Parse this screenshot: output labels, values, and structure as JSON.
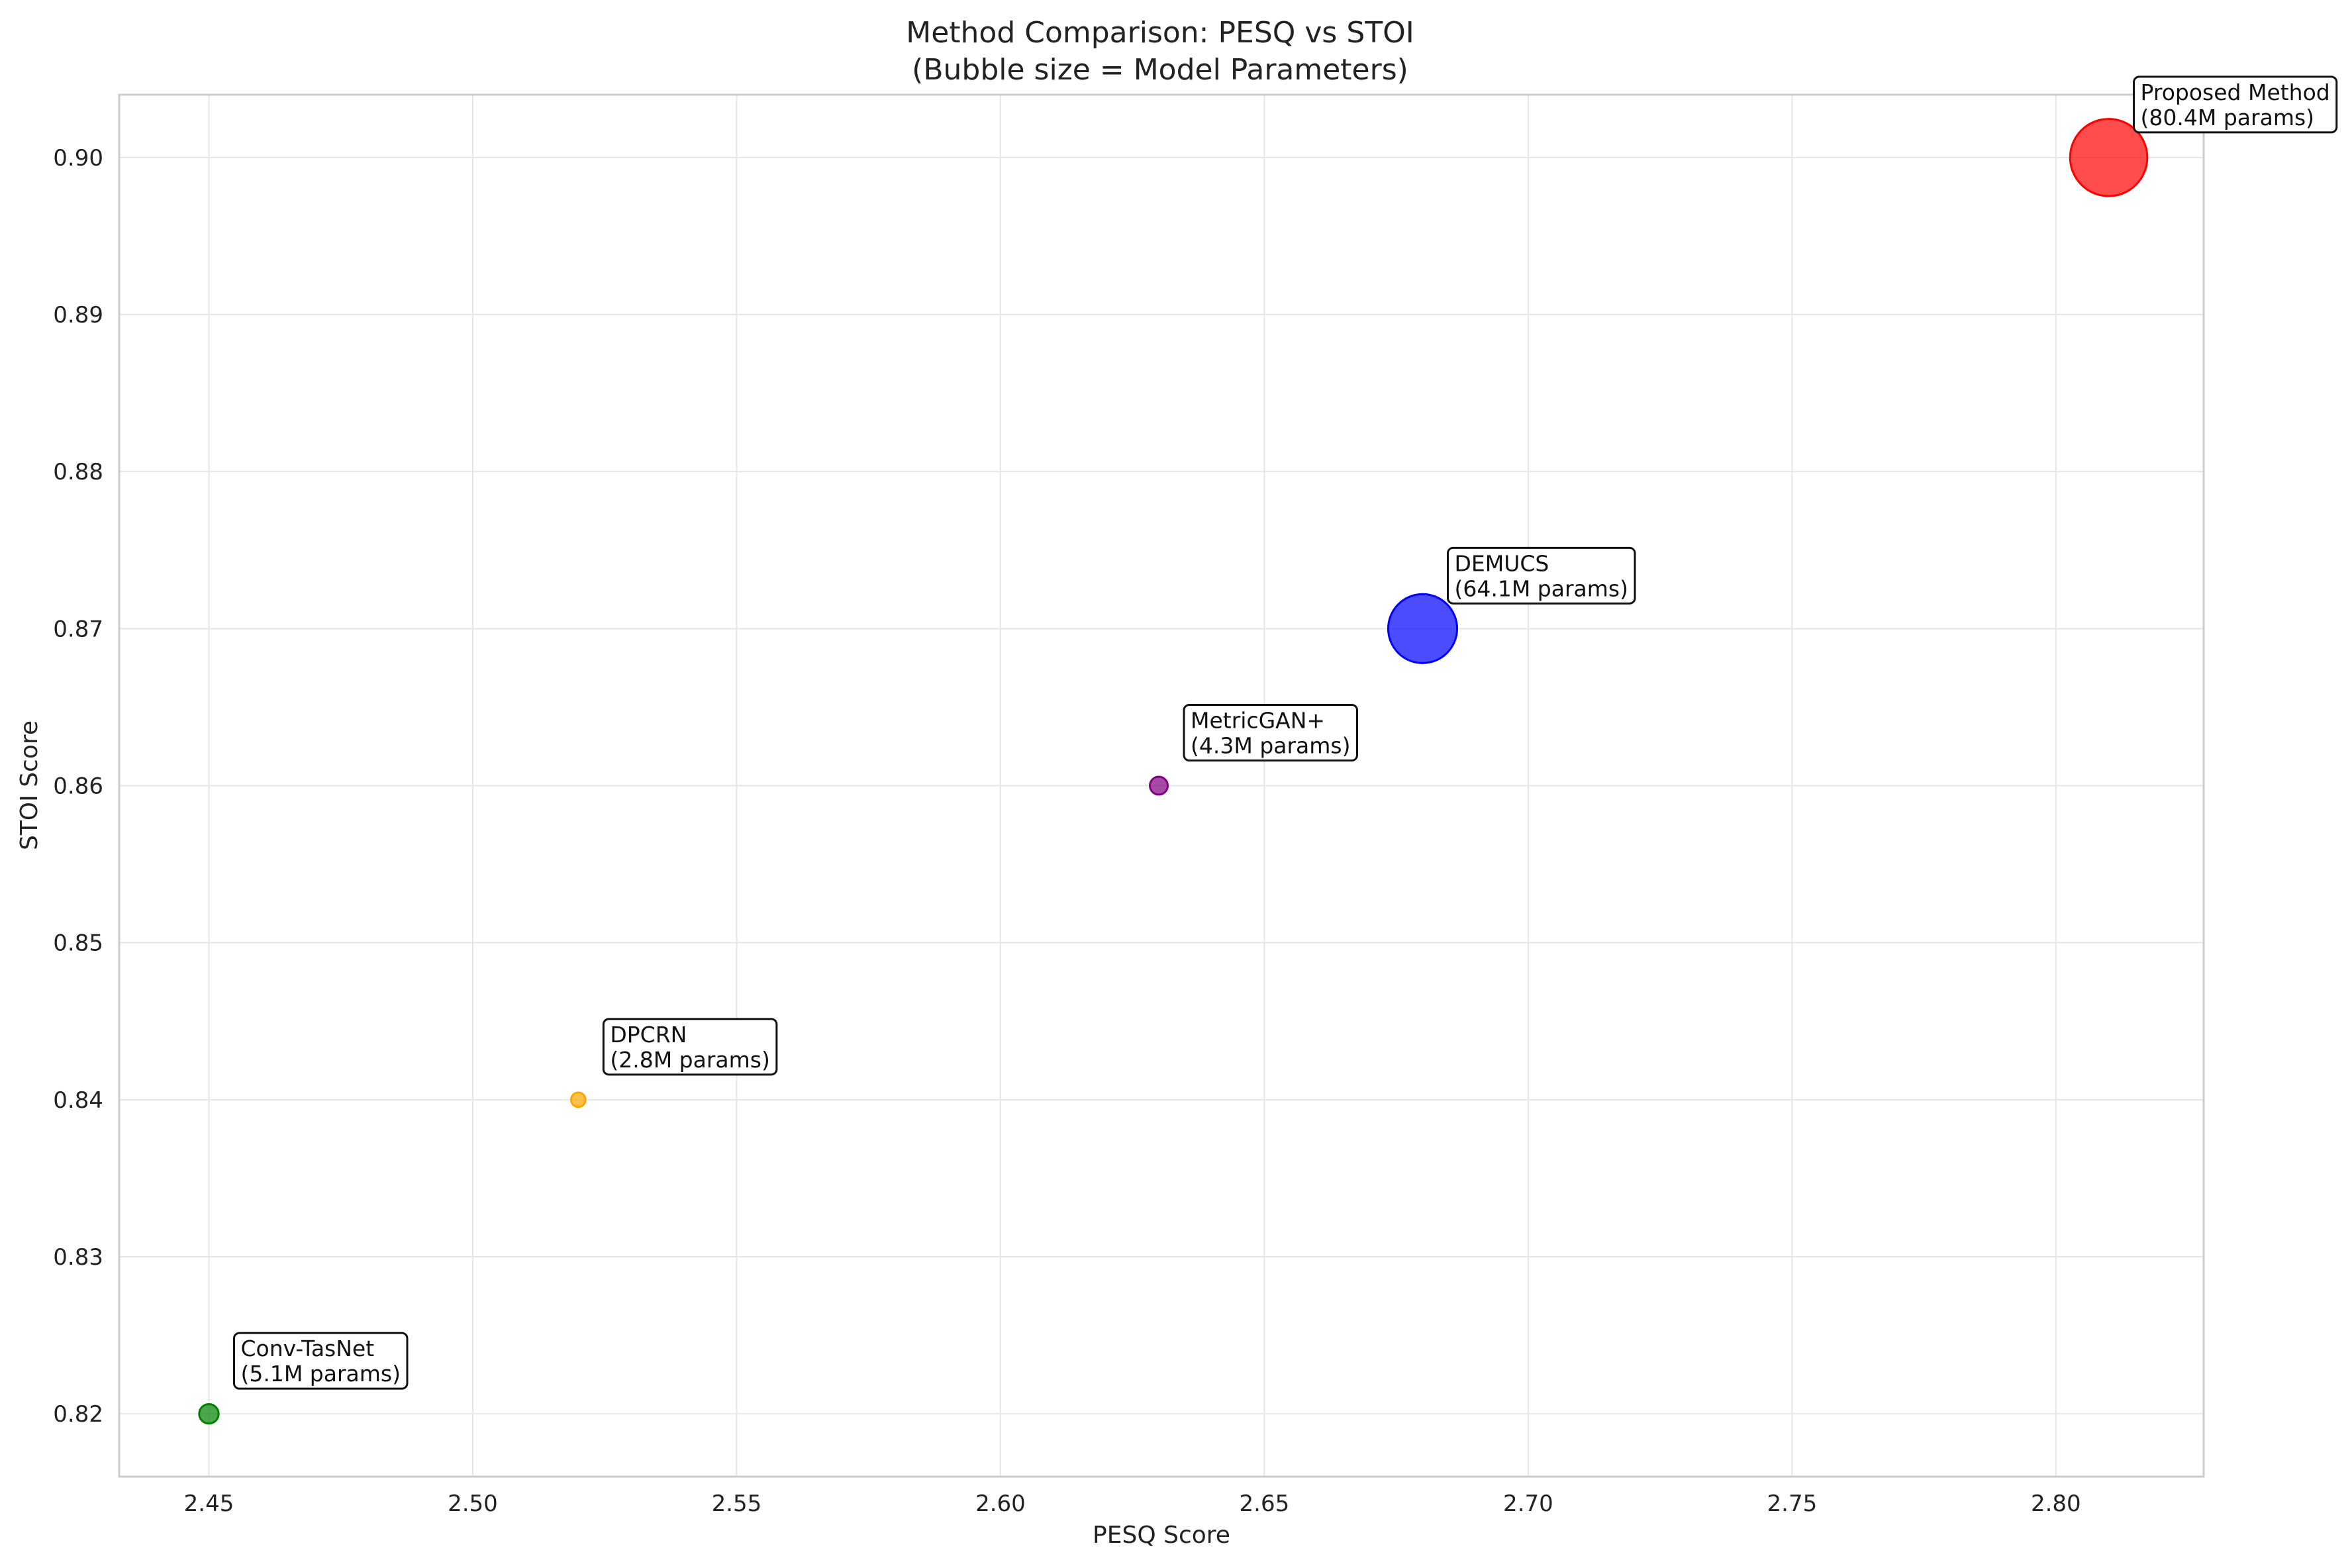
{
  "chart_data": {
    "type": "scatter",
    "title": "Method Comparison: PESQ vs STOI",
    "subtitle": "(Bubble size = Model Parameters)",
    "xlabel": "PESQ Score",
    "ylabel": "STOI Score",
    "xlim": [
      2.433,
      2.828
    ],
    "ylim": [
      0.816,
      0.904
    ],
    "xticks": [
      "2.45",
      "2.50",
      "2.55",
      "2.60",
      "2.65",
      "2.70",
      "2.75",
      "2.80"
    ],
    "yticks": [
      "0.82",
      "0.83",
      "0.84",
      "0.85",
      "0.86",
      "0.87",
      "0.88",
      "0.89",
      "0.90"
    ],
    "grid": true,
    "points": [
      {
        "name": "Conv-TasNet",
        "x": 2.45,
        "y": 0.82,
        "params_m": 5.1,
        "color": "#008000",
        "line1": "Conv-TasNet",
        "line2": "(5.1M params)"
      },
      {
        "name": "DPCRN",
        "x": 2.52,
        "y": 0.84,
        "params_m": 2.8,
        "color": "#FFA500",
        "line1": "DPCRN",
        "line2": "(2.8M params)"
      },
      {
        "name": "MetricGAN+",
        "x": 2.63,
        "y": 0.86,
        "params_m": 4.3,
        "color": "#800080",
        "line1": "MetricGAN+",
        "line2": "(4.3M params)"
      },
      {
        "name": "DEMUCS",
        "x": 2.68,
        "y": 0.87,
        "params_m": 64.1,
        "color": "#0000FF",
        "line1": "DEMUCS",
        "line2": "(64.1M params)"
      },
      {
        "name": "Proposed Method",
        "x": 2.81,
        "y": 0.9,
        "params_m": 80.4,
        "color": "#FF0000",
        "line1": "Proposed Method",
        "line2": "(80.4M params)"
      }
    ]
  }
}
